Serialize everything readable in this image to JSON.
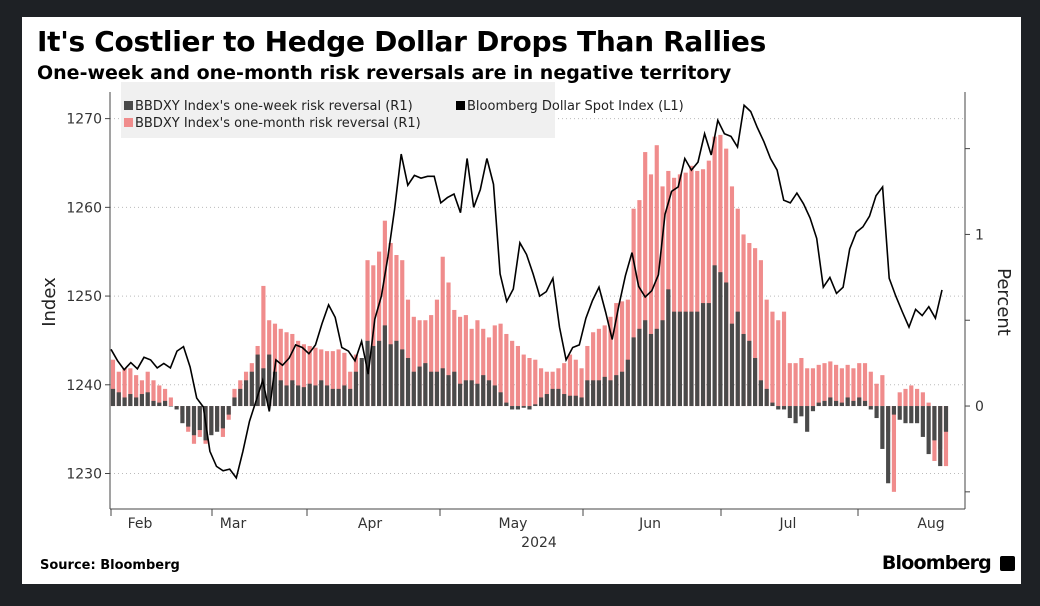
{
  "header": {
    "title": "It's Costlier to Hedge Dollar Drops Than Rallies",
    "subtitle": "One-week and one-month risk reversals are in negative territory"
  },
  "footer": {
    "source": "Source: Bloomberg",
    "brand": "Bloomberg"
  },
  "colors": {
    "week": "#4a4a4a",
    "month": "#f08c8c",
    "index": "#000000",
    "grid": "#bbbbbb"
  },
  "chart_data": {
    "type": "bar",
    "xlabel": "2024",
    "ylabel_left": "Index",
    "ylabel_right": "Percent",
    "ylim_left": [
      1226,
      1273
    ],
    "ylim_right": [
      -0.6,
      1.83
    ],
    "yticks_left": [
      "1270",
      "1260",
      "1250",
      "1240",
      "1230"
    ],
    "yticks_right": [
      "1",
      "0"
    ],
    "months": [
      "Feb",
      "Mar",
      "Apr",
      "May",
      "Jun",
      "Jul",
      "Aug"
    ],
    "legend": [
      "BBDXY Index's one-week risk reversal (R1)",
      "Bloomberg Dollar Spot Index  (L1)",
      "BBDXY Index's one-month risk reversal (R1)"
    ],
    "grid": "dotted horizontal",
    "series": [
      {
        "name": "BBDXY Index's one-month risk reversal (R1)",
        "values": [
          0.27,
          0.2,
          0.22,
          0.22,
          0.18,
          0.15,
          0.2,
          0.15,
          0.12,
          0.1,
          0.05,
          0.0,
          -0.05,
          -0.15,
          -0.22,
          -0.18,
          -0.22,
          -0.16,
          -0.12,
          -0.18,
          -0.08,
          0.1,
          0.15,
          0.2,
          0.25,
          0.35,
          0.7,
          0.5,
          0.48,
          0.45,
          0.43,
          0.42,
          0.38,
          0.36,
          0.35,
          0.34,
          0.33,
          0.32,
          0.32,
          0.33,
          0.31,
          0.2,
          0.3,
          0.25,
          0.85,
          0.82,
          0.9,
          1.08,
          0.95,
          0.88,
          0.85,
          0.62,
          0.52,
          0.5,
          0.5,
          0.53,
          0.62,
          0.87,
          0.72,
          0.56,
          0.52,
          0.53,
          0.45,
          0.5,
          0.45,
          0.4,
          0.47,
          0.48,
          0.42,
          0.38,
          0.35,
          0.3,
          0.28,
          0.27,
          0.22,
          0.2,
          0.2,
          0.22,
          0.25,
          0.3,
          0.27,
          0.22,
          0.35,
          0.43,
          0.45,
          0.47,
          0.52,
          0.6,
          0.61,
          0.62,
          1.15,
          1.2,
          1.48,
          1.35,
          1.52,
          1.28,
          1.37,
          1.33,
          1.35,
          1.36,
          1.4,
          1.37,
          1.38,
          1.43,
          1.57,
          1.58,
          1.5,
          1.28,
          1.15,
          1.0,
          0.95,
          0.92,
          0.85,
          0.62,
          0.55,
          0.5,
          0.55,
          0.25,
          0.25,
          0.28,
          0.22,
          0.22,
          0.24,
          0.25,
          0.26,
          0.24,
          0.22,
          0.24,
          0.22,
          0.25,
          0.25,
          0.2,
          0.13,
          0.18,
          -0.15,
          -0.5,
          0.08,
          0.1,
          0.12,
          0.1,
          0.08,
          0.02,
          -0.32,
          -0.25,
          -0.35
        ]
      },
      {
        "name": "BBDXY Index's one-week risk reversal (R1)",
        "values": [
          0.1,
          0.08,
          0.05,
          0.07,
          0.05,
          0.07,
          0.08,
          0.03,
          0.02,
          0.03,
          0.0,
          -0.02,
          -0.1,
          -0.12,
          -0.17,
          -0.14,
          -0.2,
          -0.17,
          -0.15,
          -0.13,
          -0.05,
          0.05,
          0.1,
          0.15,
          0.2,
          0.3,
          0.22,
          0.3,
          0.2,
          0.15,
          0.12,
          0.15,
          0.12,
          0.11,
          0.13,
          0.12,
          0.15,
          0.12,
          0.1,
          0.1,
          0.12,
          0.1,
          0.2,
          0.28,
          0.38,
          0.35,
          0.38,
          0.47,
          0.36,
          0.38,
          0.33,
          0.28,
          0.2,
          0.23,
          0.25,
          0.2,
          0.2,
          0.22,
          0.18,
          0.2,
          0.13,
          0.15,
          0.15,
          0.13,
          0.18,
          0.15,
          0.12,
          0.08,
          0.02,
          -0.02,
          -0.02,
          -0.01,
          -0.02,
          0.01,
          0.05,
          0.07,
          0.1,
          0.1,
          0.07,
          0.06,
          0.06,
          0.05,
          0.15,
          0.15,
          0.15,
          0.17,
          0.15,
          0.18,
          0.2,
          0.27,
          0.4,
          0.45,
          0.5,
          0.42,
          0.45,
          0.5,
          0.68,
          0.55,
          0.55,
          0.55,
          0.55,
          0.55,
          0.6,
          0.6,
          0.82,
          0.78,
          0.72,
          0.48,
          0.55,
          0.42,
          0.38,
          0.28,
          0.15,
          0.1,
          0.02,
          -0.02,
          -0.02,
          -0.07,
          -0.1,
          -0.06,
          -0.15,
          -0.03,
          0.02,
          0.03,
          0.05,
          0.03,
          0.02,
          0.05,
          0.03,
          0.05,
          0.03,
          -0.02,
          -0.07,
          -0.25,
          -0.45,
          -0.05,
          -0.08,
          -0.1,
          -0.1,
          -0.1,
          -0.18,
          -0.28,
          -0.2,
          -0.35,
          -0.15
        ]
      },
      {
        "name": "Bloomberg Dollar Spot Index  (L1)",
        "values": [
          1244,
          1242.7,
          1241.7,
          1242.5,
          1241.8,
          1243.1,
          1242.8,
          1241.9,
          1242.4,
          1241.9,
          1243.8,
          1244.3,
          1242,
          1238.5,
          1237.5,
          1232.5,
          1230.8,
          1230.3,
          1230.5,
          1229.5,
          1232.5,
          1235.9,
          1238.2,
          1240.5,
          1237,
          1242.8,
          1242.2,
          1243,
          1244.5,
          1244.2,
          1243.5,
          1244.5,
          1246.9,
          1249,
          1247.6,
          1244.2,
          1243.8,
          1242.7,
          1244.9,
          1241.2,
          1247.4,
          1250,
          1254.5,
          1259.8,
          1266,
          1262.5,
          1263.6,
          1263.3,
          1263.5,
          1263.5,
          1260.5,
          1261.1,
          1261.5,
          1259.4,
          1265.5,
          1260,
          1262,
          1265.5,
          1262.6,
          1252.5,
          1249.4,
          1250.8,
          1256,
          1254.7,
          1252.5,
          1250,
          1250.5,
          1252,
          1246.5,
          1242.8,
          1244.2,
          1244.5,
          1247.5,
          1249.5,
          1251,
          1248.2,
          1245.1,
          1248.9,
          1252.3,
          1254.9,
          1251.1,
          1249.9,
          1250.6,
          1252.4,
          1259.2,
          1261.8,
          1262.3,
          1265.5,
          1264.2,
          1265.1,
          1268.3,
          1265.9,
          1269.8,
          1268.3,
          1268,
          1266.8,
          1271.5,
          1270.8,
          1269,
          1267.4,
          1265.5,
          1264.2,
          1260.8,
          1260.5,
          1261.6,
          1260.4,
          1258.8,
          1256.5,
          1251,
          1252.1,
          1250.3,
          1251,
          1255.3,
          1257.2,
          1257.8,
          1259,
          1261.3,
          1262.3,
          1252,
          1250,
          1248.2,
          1246.5,
          1248.5,
          1247.8,
          1248.8,
          1247.5,
          1250.7
        ]
      }
    ]
  }
}
